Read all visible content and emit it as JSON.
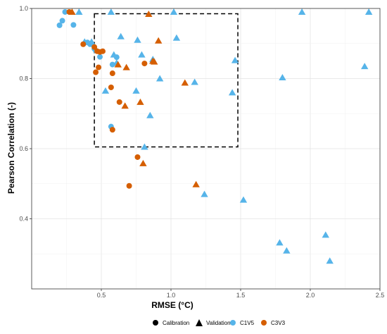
{
  "chart_data": {
    "type": "scatter",
    "xlabel": "RMSE (°C)",
    "ylabel": "Pearson Correlation (-)",
    "xlim": [
      0.0,
      2.5
    ],
    "ylim": [
      0.2,
      1.0
    ],
    "x_ticks": [
      "0.5",
      "1.0",
      "1.5",
      "2.0",
      "2.5"
    ],
    "y_ticks": [
      "0.4",
      "0.6",
      "0.8",
      "1.0"
    ],
    "grid": true,
    "legend_position": "bottom",
    "legend": {
      "shape_entries": [
        {
          "label": "Calibration",
          "shape": "circle"
        },
        {
          "label": "Validation",
          "shape": "triangle"
        }
      ],
      "color_entries": [
        {
          "label": "C1V5",
          "color": "#56B4E9"
        },
        {
          "label": "C3V3",
          "color": "#D55E00"
        }
      ]
    },
    "highlight_box": {
      "x": [
        0.45,
        1.48
      ],
      "y": [
        0.605,
        0.985
      ],
      "style": "dashed"
    },
    "series": [
      {
        "name": "C1V5",
        "color": "#56B4E9",
        "calibration": [
          [
            0.2,
            0.952
          ],
          [
            0.22,
            0.965
          ],
          [
            0.24,
            0.99
          ],
          [
            0.3,
            0.953
          ],
          [
            0.4,
            0.903
          ],
          [
            0.42,
            0.898
          ],
          [
            0.45,
            0.885
          ],
          [
            0.46,
            0.88
          ],
          [
            0.49,
            0.862
          ],
          [
            0.57,
            0.663
          ],
          [
            0.58,
            0.84
          ],
          [
            0.61,
            0.861
          ]
        ],
        "validation": [
          [
            0.34,
            0.99
          ],
          [
            0.38,
            0.905
          ],
          [
            0.43,
            0.905
          ],
          [
            0.53,
            0.765
          ],
          [
            0.57,
            0.99
          ],
          [
            0.59,
            0.868
          ],
          [
            0.61,
            0.845
          ],
          [
            0.64,
            0.92
          ],
          [
            0.75,
            0.765
          ],
          [
            0.76,
            0.91
          ],
          [
            0.79,
            0.868
          ],
          [
            0.81,
            0.605
          ],
          [
            0.85,
            0.695
          ],
          [
            0.87,
            0.855
          ],
          [
            0.92,
            0.8
          ],
          [
            1.02,
            0.99
          ],
          [
            1.04,
            0.916
          ],
          [
            1.17,
            0.79
          ],
          [
            1.24,
            0.47
          ],
          [
            1.44,
            0.76
          ],
          [
            1.46,
            0.852
          ],
          [
            1.52,
            0.454
          ],
          [
            1.78,
            0.332
          ],
          [
            1.8,
            0.803
          ],
          [
            1.83,
            0.309
          ],
          [
            1.94,
            0.99
          ],
          [
            2.11,
            0.354
          ],
          [
            2.14,
            0.28
          ],
          [
            2.39,
            0.835
          ],
          [
            2.42,
            0.99
          ]
        ]
      },
      {
        "name": "C3V3",
        "color": "#D55E00",
        "calibration": [
          [
            0.27,
            0.99
          ],
          [
            0.37,
            0.898
          ],
          [
            0.45,
            0.89
          ],
          [
            0.46,
            0.818
          ],
          [
            0.47,
            0.878
          ],
          [
            0.48,
            0.832
          ],
          [
            0.49,
            0.876
          ],
          [
            0.51,
            0.878
          ],
          [
            0.57,
            0.775
          ],
          [
            0.58,
            0.815
          ],
          [
            0.58,
            0.654
          ],
          [
            0.63,
            0.733
          ],
          [
            0.7,
            0.494
          ],
          [
            0.76,
            0.576
          ],
          [
            0.81,
            0.843
          ]
        ],
        "validation": [
          [
            0.29,
            0.99
          ],
          [
            0.62,
            0.84
          ],
          [
            0.67,
            0.722
          ],
          [
            0.68,
            0.832
          ],
          [
            0.78,
            0.733
          ],
          [
            0.8,
            0.558
          ],
          [
            0.84,
            0.984
          ],
          [
            0.87,
            0.85
          ],
          [
            0.88,
            0.848
          ],
          [
            0.91,
            0.908
          ],
          [
            1.1,
            0.788
          ],
          [
            1.18,
            0.498
          ]
        ]
      }
    ]
  }
}
